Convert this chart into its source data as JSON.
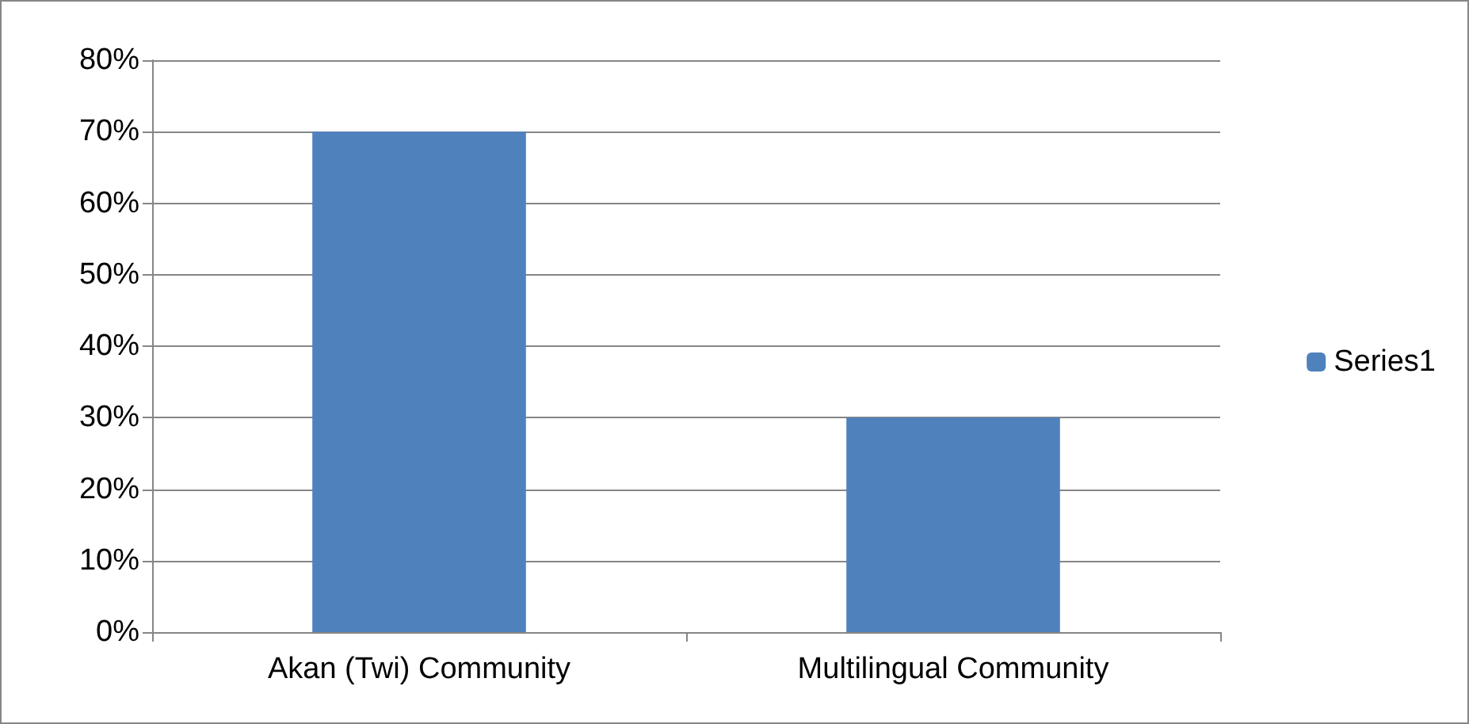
{
  "chart_data": {
    "type": "bar",
    "categories": [
      "Akan (Twi) Community",
      "Multilingual Community"
    ],
    "series": [
      {
        "name": "Series1",
        "color": "#4f81bd",
        "values": [
          70,
          30
        ]
      }
    ],
    "ylim": [
      0,
      80
    ],
    "yticks": [
      {
        "value": 0,
        "label": "0%"
      },
      {
        "value": 10,
        "label": "10%"
      },
      {
        "value": 20,
        "label": "20%"
      },
      {
        "value": 30,
        "label": "30%"
      },
      {
        "value": 40,
        "label": "40%"
      },
      {
        "value": 50,
        "label": "50%"
      },
      {
        "value": 60,
        "label": "60%"
      },
      {
        "value": 70,
        "label": "70%"
      },
      {
        "value": 80,
        "label": "80%"
      }
    ],
    "grid": "y",
    "legend": "right"
  }
}
